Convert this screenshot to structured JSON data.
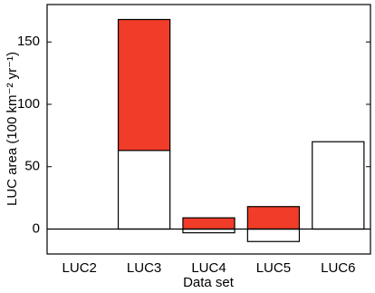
{
  "chart_data": {
    "type": "stacked-bar",
    "xlabel": "Data set",
    "ylabel": "LUC area (100 km⁻² yr⁻¹)",
    "categories": [
      "LUC2",
      "LUC3",
      "LUC4",
      "LUC5",
      "LUC6"
    ],
    "series": [
      {
        "color": "#ffffff",
        "values": [
          0,
          63,
          -3,
          -10,
          70
        ]
      },
      {
        "color": "#f03c28",
        "values": [
          0,
          105,
          9,
          18,
          0
        ]
      }
    ],
    "ylim": [
      -20,
      180
    ],
    "yticks": [
      0,
      50,
      100,
      150
    ],
    "zero_line": true
  }
}
